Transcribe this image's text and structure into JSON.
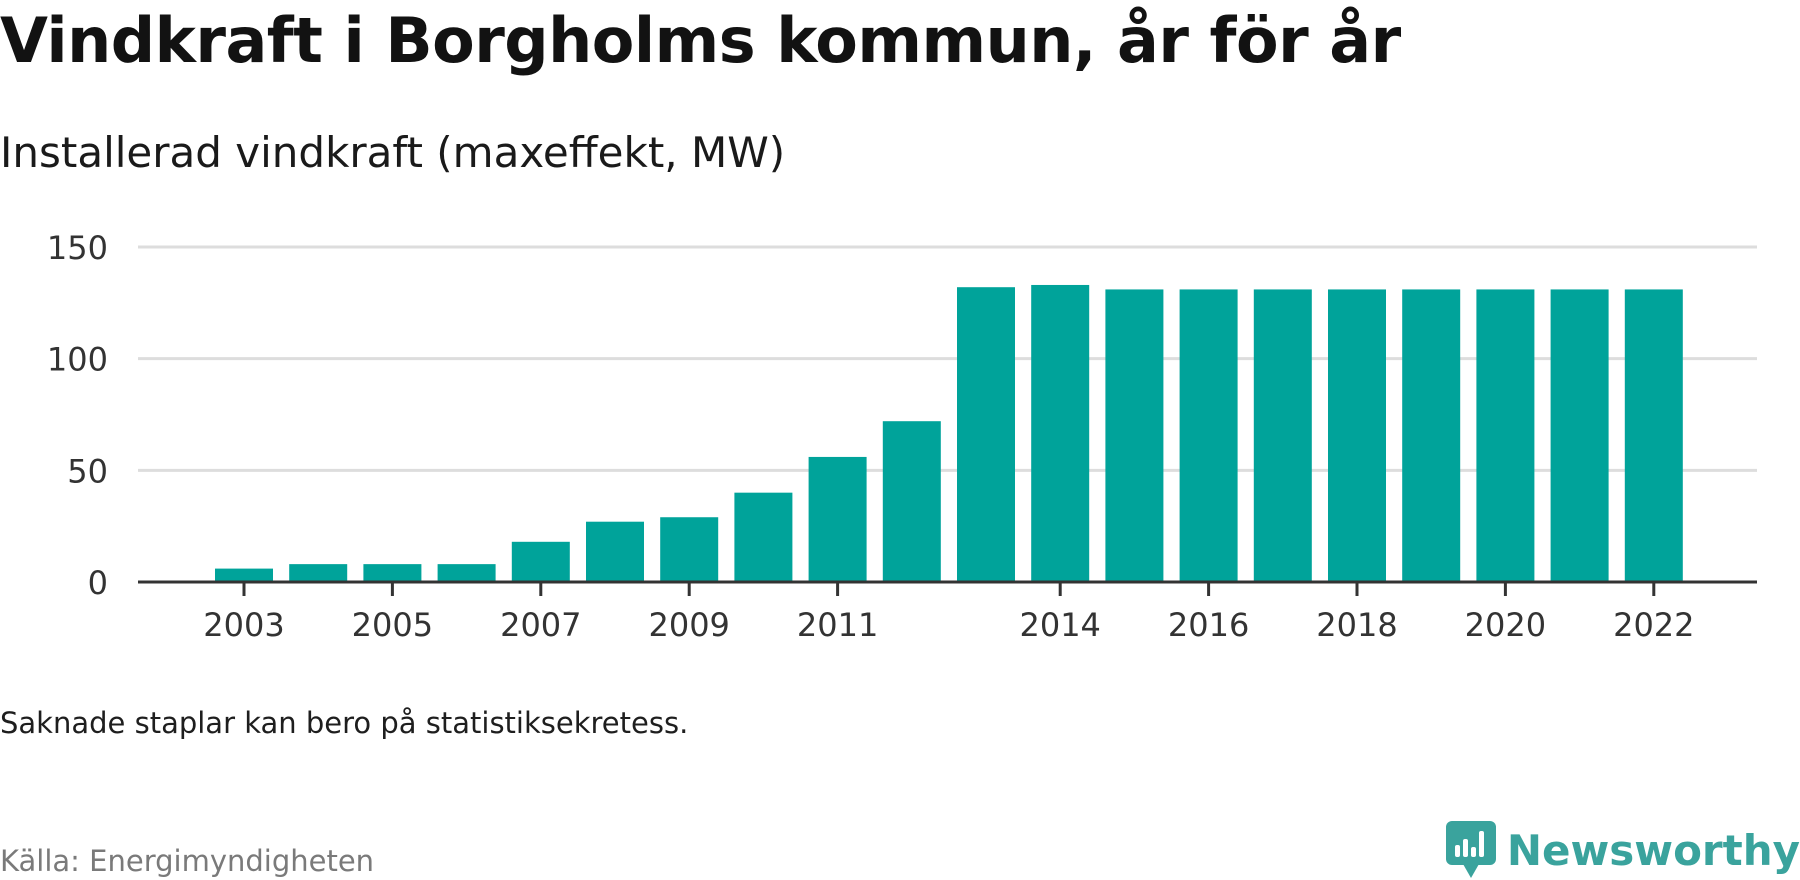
{
  "title": "Vindkraft i Borgholms kommun, år för år",
  "subtitle": "Installerad vindkraft (maxeffekt, MW)",
  "note": "Saknade staplar kan bero på statistiksekretess.",
  "source": "Källa: Energimyndigheten",
  "brand": {
    "name": "Newsworthy",
    "icon": "newsworthy-logo-icon",
    "color": "#3aa39d"
  },
  "colors": {
    "bar": "#00a39a",
    "grid": "#dddddd",
    "axis": "#333333"
  },
  "chart_data": {
    "type": "bar",
    "x": [
      2003,
      2004,
      2005,
      2006,
      2007,
      2008,
      2009,
      2010,
      2011,
      2012,
      2013,
      2014,
      2015,
      2016,
      2017,
      2018,
      2019,
      2020,
      2021,
      2022
    ],
    "values": [
      6,
      8,
      8,
      8,
      18,
      27,
      29,
      40,
      56,
      72,
      132,
      133,
      131,
      131,
      131,
      131,
      131,
      131,
      131,
      131
    ],
    "xticks": [
      "2003",
      "2005",
      "2007",
      "2009",
      "2011",
      "2014",
      "2016",
      "2018",
      "2020",
      "2022"
    ],
    "yticks": [
      "0",
      "50",
      "100",
      "150"
    ],
    "ylim": [
      0,
      150
    ],
    "grid": true
  }
}
